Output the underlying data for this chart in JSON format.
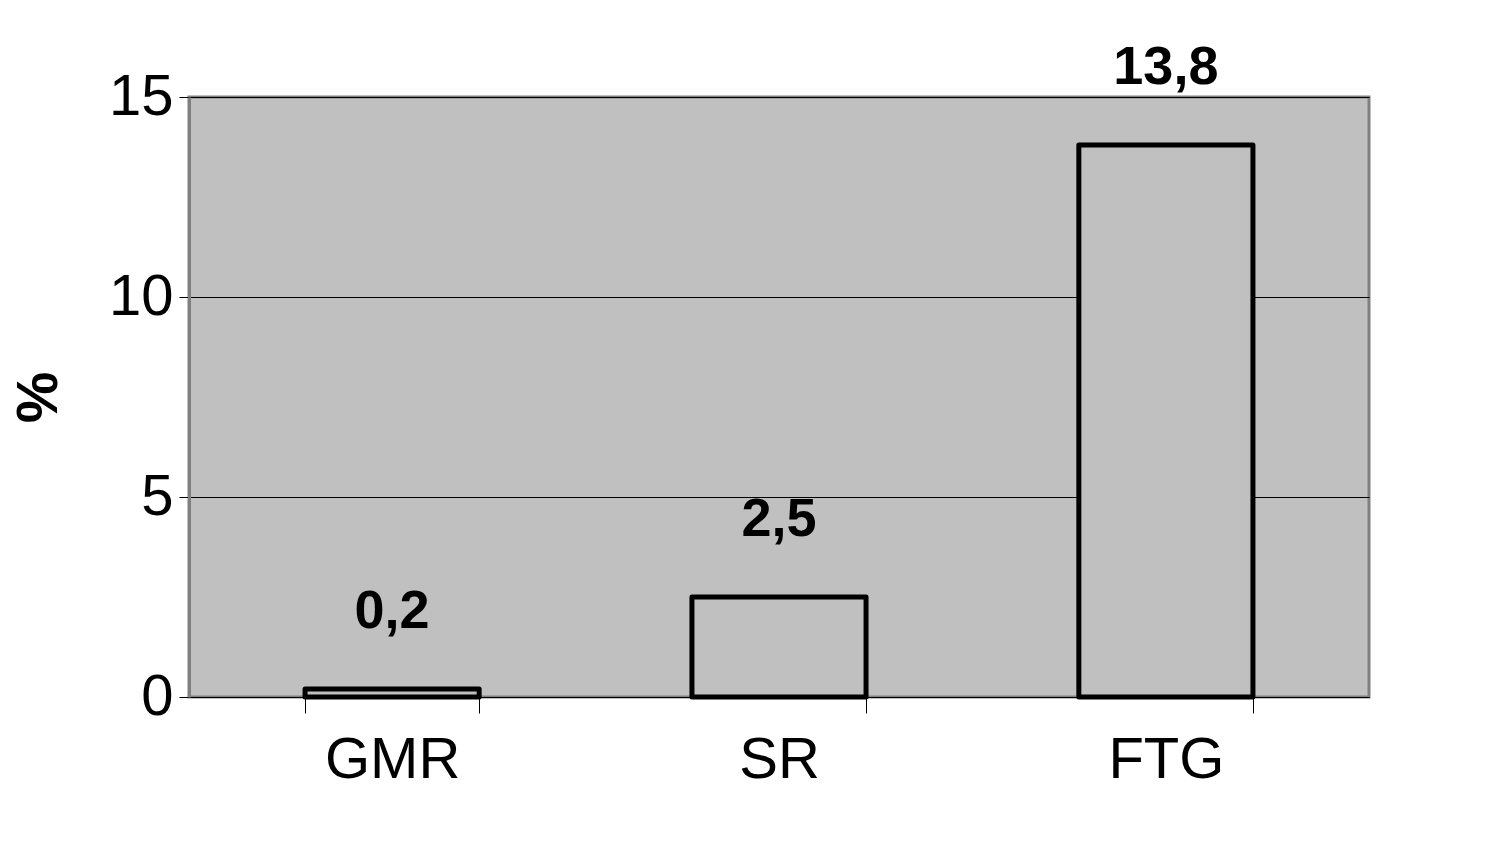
{
  "chart_data": {
    "type": "bar",
    "ylabel": "%",
    "categories": [
      "GMR",
      "SR",
      "FTG"
    ],
    "values": [
      0.2,
      2.5,
      13.8
    ],
    "value_labels": [
      "0,2",
      "2,5",
      "13,8"
    ],
    "color": "#c0c0c0",
    "ylim": [
      0,
      15
    ],
    "yticks": [
      0,
      5,
      10,
      15
    ],
    "grid": "y"
  }
}
